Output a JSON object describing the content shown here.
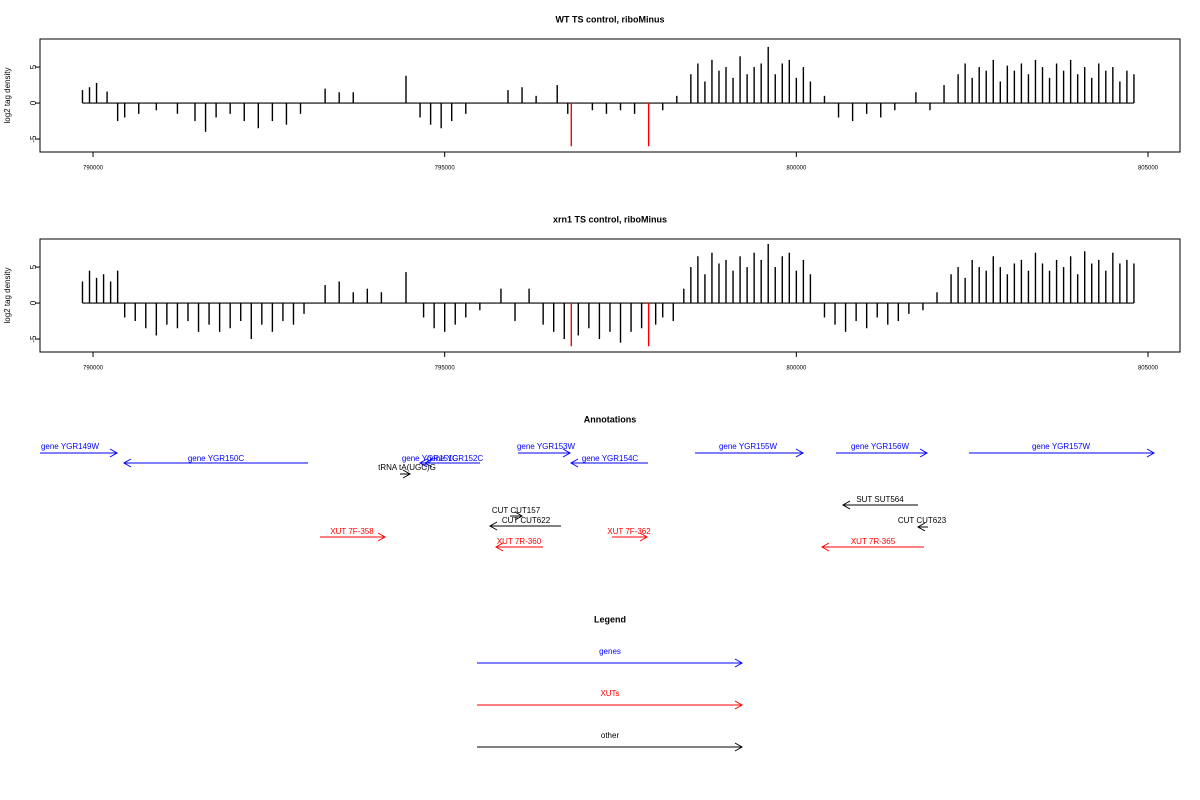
{
  "chart_data": [
    {
      "type": "bar",
      "title": "WT TS control, riboMinus",
      "y_label": "log2 tag density",
      "xlim": [
        789246,
        805455
      ],
      "xticks": [
        790000,
        795000,
        800000,
        805000
      ],
      "ylim": [
        -6.8,
        8.9
      ],
      "yticks": [
        -5,
        0,
        5
      ],
      "series": [
        {
          "color": "#000000",
          "x": [
            789850,
            789950,
            790050,
            790200,
            790350,
            790450,
            790650,
            790900,
            791200,
            791450,
            791600,
            791750,
            791950,
            792150,
            792350,
            792550,
            792750,
            792950,
            793300,
            793500,
            793700,
            794450,
            794650,
            794800,
            794950,
            795100,
            795300,
            795900,
            796100,
            796300,
            796600,
            796750,
            797100,
            797300,
            797500,
            797700,
            798100,
            798300,
            798500,
            798600,
            798700,
            798800,
            798900,
            799000,
            799100,
            799200,
            799300,
            799400,
            799500,
            799600,
            799700,
            799800,
            799900,
            800000,
            800100,
            800200,
            800400,
            800600,
            800800,
            801000,
            801200,
            801400,
            801700,
            801900,
            802100,
            802300,
            802400,
            802500,
            802600,
            802700,
            802800,
            802900,
            803000,
            803100,
            803200,
            803300,
            803400,
            803500,
            803600,
            803700,
            803800,
            803900,
            804000,
            804100,
            804200,
            804300,
            804400,
            804500,
            804600,
            804700,
            804800
          ],
          "values": [
            1.8,
            2.2,
            2.8,
            1.6,
            -2.5,
            -2,
            -1.5,
            -1,
            -1.5,
            -2.5,
            -4,
            -2,
            -1.5,
            -2.5,
            -3.5,
            -2.5,
            -3,
            -1.5,
            2,
            1.5,
            1.5,
            3.8,
            -2,
            -3,
            -3.5,
            -2.5,
            -1.5,
            1.8,
            2.2,
            1,
            2.5,
            -1.5,
            -1,
            -1.5,
            -1,
            -1.5,
            -1,
            1,
            4,
            5.5,
            3,
            6,
            4.5,
            5,
            3.5,
            6.5,
            4,
            5,
            5.5,
            7.8,
            4,
            5.5,
            6,
            3.5,
            5,
            3,
            1,
            -2,
            -2.5,
            -1.5,
            -2,
            -1,
            1.5,
            -1,
            2.5,
            4,
            5.5,
            3.5,
            5,
            4.5,
            6,
            3,
            5.2,
            4.5,
            5.5,
            4,
            6,
            5,
            3.5,
            5.5,
            4.5,
            6,
            4,
            5,
            3.5,
            5.5,
            4.5,
            5,
            3,
            4.5,
            4
          ]
        },
        {
          "color": "#ff0000",
          "x": [
            796800,
            797900
          ],
          "values": [
            -6,
            -6
          ]
        }
      ]
    },
    {
      "type": "bar",
      "title": "xrn1 TS control, riboMinus",
      "y_label": "log2 tag density",
      "xlim": [
        789246,
        805455
      ],
      "xticks": [
        790000,
        795000,
        800000,
        805000
      ],
      "ylim": [
        -6.8,
        8.9
      ],
      "yticks": [
        -5,
        0,
        5
      ],
      "series": [
        {
          "color": "#000000",
          "x": [
            789850,
            789950,
            790050,
            790150,
            790250,
            790350,
            790450,
            790600,
            790750,
            790900,
            791050,
            791200,
            791350,
            791500,
            791650,
            791800,
            791950,
            792100,
            792250,
            792400,
            792550,
            792700,
            792850,
            793000,
            793300,
            793500,
            793700,
            793900,
            794100,
            794450,
            794700,
            794850,
            795000,
            795150,
            795300,
            795500,
            795800,
            796000,
            796200,
            796400,
            796550,
            796700,
            796900,
            797050,
            797200,
            797350,
            797500,
            797650,
            797800,
            798000,
            798100,
            798250,
            798400,
            798500,
            798600,
            798700,
            798800,
            798900,
            799000,
            799100,
            799200,
            799300,
            799400,
            799500,
            799600,
            799700,
            799800,
            799900,
            800000,
            800100,
            800200,
            800400,
            800550,
            800700,
            800850,
            801000,
            801150,
            801300,
            801450,
            801600,
            801800,
            802000,
            802200,
            802300,
            802400,
            802500,
            802600,
            802700,
            802800,
            802900,
            803000,
            803100,
            803200,
            803300,
            803400,
            803500,
            803600,
            803700,
            803800,
            803900,
            804000,
            804100,
            804200,
            804300,
            804400,
            804500,
            804600,
            804700,
            804800
          ],
          "values": [
            3,
            4.5,
            3.5,
            4,
            3,
            4.5,
            -2,
            -2.5,
            -3.5,
            -4.5,
            -3,
            -3.5,
            -2.5,
            -4,
            -3,
            -4,
            -3.5,
            -2.5,
            -5,
            -3,
            -4,
            -2.5,
            -3,
            -1.5,
            2.5,
            3,
            1.5,
            2,
            1.5,
            4.3,
            -2,
            -3.5,
            -4,
            -3,
            -2,
            -1,
            2,
            -2.5,
            2,
            -3,
            -4,
            -5,
            -4.5,
            -3.5,
            -5,
            -4,
            -5.5,
            -4,
            -3.5,
            -3,
            -2,
            -2.5,
            2,
            5,
            6.5,
            4,
            7,
            5.5,
            6,
            4.5,
            6.5,
            5,
            7,
            6,
            8.2,
            5,
            6.5,
            7,
            4.5,
            6,
            4,
            -2,
            -3,
            -4,
            -2.5,
            -3.5,
            -2,
            -3,
            -2.5,
            -1.5,
            -1,
            1.5,
            4,
            5,
            3.5,
            6,
            5,
            4.5,
            6.5,
            5,
            4,
            5.5,
            6,
            4.5,
            7,
            5.5,
            4.5,
            6,
            5,
            6.5,
            4,
            7.2,
            5.5,
            6,
            4.5,
            7,
            5.5,
            6,
            5.5
          ]
        },
        {
          "color": "#ff0000",
          "x": [
            796800,
            797900
          ],
          "values": [
            -6,
            -6
          ]
        }
      ]
    }
  ],
  "annotations": {
    "title": "Annotations",
    "features": [
      {
        "label": "gene YGR149W",
        "color": "#0000ff"
      },
      {
        "label": "gene YGR150C",
        "color": "#0000ff"
      },
      {
        "label": "gene YGR151C",
        "color": "#0000ff"
      },
      {
        "label": "gene YGR152C",
        "color": "#0000ff"
      },
      {
        "label": "tRNA tA(UGC)G",
        "color": "#000000"
      },
      {
        "label": "gene YGR153W",
        "color": "#0000ff"
      },
      {
        "label": "gene YGR154C",
        "color": "#0000ff"
      },
      {
        "label": "gene YGR155W",
        "color": "#0000ff"
      },
      {
        "label": "gene YGR156W",
        "color": "#0000ff"
      },
      {
        "label": "gene YGR157W",
        "color": "#0000ff"
      },
      {
        "label": "SUT SUT564",
        "color": "#000000"
      },
      {
        "label": "CUT CUT157",
        "color": "#000000"
      },
      {
        "label": "CUT CUT622",
        "color": "#000000"
      },
      {
        "label": "CUT CUT623",
        "color": "#000000"
      },
      {
        "label": "XUT 7F-358",
        "color": "#ff0000"
      },
      {
        "label": "XUT 7F-362",
        "color": "#ff0000"
      },
      {
        "label": "XUT 7R-360",
        "color": "#ff0000"
      },
      {
        "label": "XUT 7R-365",
        "color": "#ff0000"
      }
    ],
    "legend": {
      "title": "Legend",
      "items": [
        {
          "label": "genes",
          "color": "#0000ff"
        },
        {
          "label": "XUTs",
          "color": "#ff0000"
        },
        {
          "label": "other",
          "color": "#000000"
        }
      ]
    }
  }
}
